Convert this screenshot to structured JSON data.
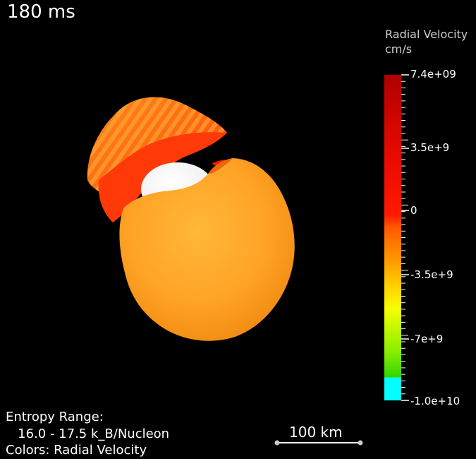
{
  "time_label": "180 ms",
  "colorbar": {
    "title": "Radial Velocity",
    "unit": "cm/s",
    "ticks": [
      {
        "label": "7.4e+09",
        "value": 7400000000.0
      },
      {
        "label": "3.5e+9",
        "value": 3500000000.0
      },
      {
        "label": "0",
        "value": 0
      },
      {
        "label": "-3.5e+9",
        "value": -3500000000.0
      },
      {
        "label": "-7e+9",
        "value": -7000000000.0
      },
      {
        "label": "-1.0e+10",
        "value": -10000000000.0
      }
    ],
    "colors": {
      "max": "#b50000",
      "mid_red": "#ff1a00",
      "zero": "#ff3300",
      "orange": "#ff9900",
      "yellow": "#ffff00",
      "green": "#33dd00",
      "min": "#00ffff"
    }
  },
  "info": {
    "line1": "Entropy Range:",
    "line2": "   16.0 - 17.5 k_B/Nucleon",
    "line3": "Colors: Radial Velocity"
  },
  "scale_bar": {
    "label": "100 km"
  }
}
